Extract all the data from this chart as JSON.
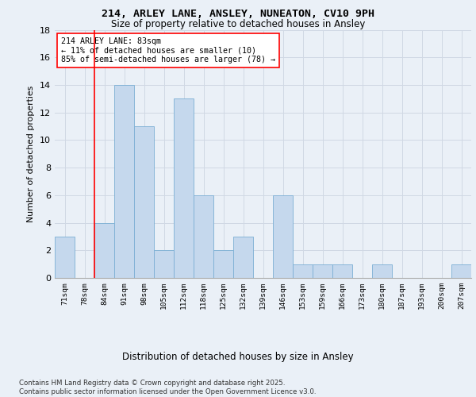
{
  "title_line1": "214, ARLEY LANE, ANSLEY, NUNEATON, CV10 9PH",
  "title_line2": "Size of property relative to detached houses in Ansley",
  "xlabel": "Distribution of detached houses by size in Ansley",
  "ylabel": "Number of detached properties",
  "categories": [
    "71sqm",
    "78sqm",
    "84sqm",
    "91sqm",
    "98sqm",
    "105sqm",
    "112sqm",
    "118sqm",
    "125sqm",
    "132sqm",
    "139sqm",
    "146sqm",
    "153sqm",
    "159sqm",
    "166sqm",
    "173sqm",
    "180sqm",
    "187sqm",
    "193sqm",
    "200sqm",
    "207sqm"
  ],
  "values": [
    3,
    0,
    4,
    14,
    11,
    2,
    13,
    6,
    2,
    3,
    0,
    6,
    1,
    1,
    1,
    0,
    1,
    0,
    0,
    0,
    1
  ],
  "bar_color": "#c5d8ed",
  "bar_edge_color": "#7bafd4",
  "grid_color": "#d0d8e4",
  "background_color": "#eaf0f7",
  "vline_x_idx": 1.5,
  "vline_color": "red",
  "annotation_text": "214 ARLEY LANE: 83sqm\n← 11% of detached houses are smaller (10)\n85% of semi-detached houses are larger (78) →",
  "annotation_box_color": "white",
  "annotation_box_edge": "red",
  "ylim": [
    0,
    18
  ],
  "yticks": [
    0,
    2,
    4,
    6,
    8,
    10,
    12,
    14,
    16,
    18
  ],
  "footer": "Contains HM Land Registry data © Crown copyright and database right 2025.\nContains public sector information licensed under the Open Government Licence v3.0."
}
